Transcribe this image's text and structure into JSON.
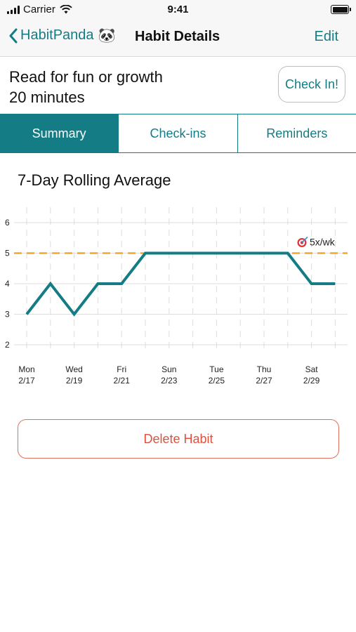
{
  "status_bar": {
    "carrier": "Carrier",
    "time": "9:41"
  },
  "nav": {
    "back_label": "HabitPanda",
    "back_emoji": "🐼",
    "title": "Habit Details",
    "edit_label": "Edit"
  },
  "habit": {
    "name": "Read for fun or growth",
    "target": "20 minutes",
    "check_in_label": "Check In!"
  },
  "tabs": [
    {
      "label": "Summary",
      "active": true
    },
    {
      "label": "Check-ins",
      "active": false
    },
    {
      "label": "Reminders",
      "active": false
    }
  ],
  "summary": {
    "title": "7-Day Rolling Average"
  },
  "chart_data": {
    "type": "line",
    "x": [
      "2/17",
      "2/18",
      "2/19",
      "2/20",
      "2/21",
      "2/22",
      "2/23",
      "2/24",
      "2/25",
      "2/26",
      "2/27",
      "2/28",
      "2/29",
      "3/1"
    ],
    "xtick_labels": [
      {
        "day": "Mon",
        "date": "2/17"
      },
      {
        "day": "Wed",
        "date": "2/19"
      },
      {
        "day": "Fri",
        "date": "2/21"
      },
      {
        "day": "Sun",
        "date": "2/23"
      },
      {
        "day": "Tue",
        "date": "2/25"
      },
      {
        "day": "Thu",
        "date": "2/27"
      },
      {
        "day": "Sat",
        "date": "2/29"
      }
    ],
    "series": [
      {
        "values": [
          3,
          4,
          3,
          4,
          4,
          5,
          5,
          5,
          5,
          5,
          5,
          5,
          4,
          4
        ]
      }
    ],
    "yticks": [
      2,
      3,
      4,
      5,
      6
    ],
    "ylim": [
      2,
      6
    ],
    "goal": {
      "value": 5,
      "label": "5x/wk",
      "icon": "target-icon"
    },
    "colors": {
      "line": "#137c84",
      "goal": "#f0a830",
      "grid": "#dddddd"
    },
    "grid": true
  },
  "delete_label": "Delete Habit",
  "colors": {
    "accent": "#137c84",
    "danger": "#e0503c"
  }
}
